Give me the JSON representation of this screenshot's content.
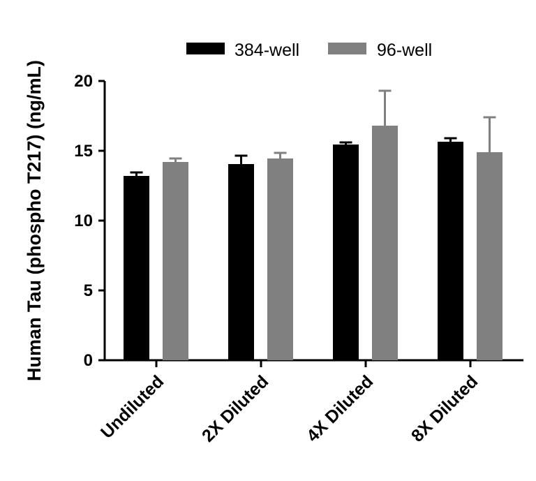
{
  "chart_data": {
    "type": "bar",
    "title": "",
    "xlabel": "",
    "ylabel": "Human Tau (phospho T217) (ng/mL)",
    "ylim": [
      0,
      20
    ],
    "yticks": [
      "0",
      "5",
      "10",
      "15",
      "20"
    ],
    "categories": [
      "Undiluted",
      "2X Diluted",
      "4X Diluted",
      "8X Diluted"
    ],
    "legend_position": "top",
    "series": [
      {
        "name": "384-well",
        "color": "#000000",
        "values": [
          13.2,
          14.05,
          15.45,
          15.65
        ],
        "errors": [
          0.25,
          0.6,
          0.15,
          0.25
        ]
      },
      {
        "name": "96-well",
        "color": "#808080",
        "values": [
          14.2,
          14.45,
          16.8,
          14.9
        ],
        "errors": [
          0.25,
          0.4,
          2.5,
          2.5
        ]
      }
    ]
  }
}
